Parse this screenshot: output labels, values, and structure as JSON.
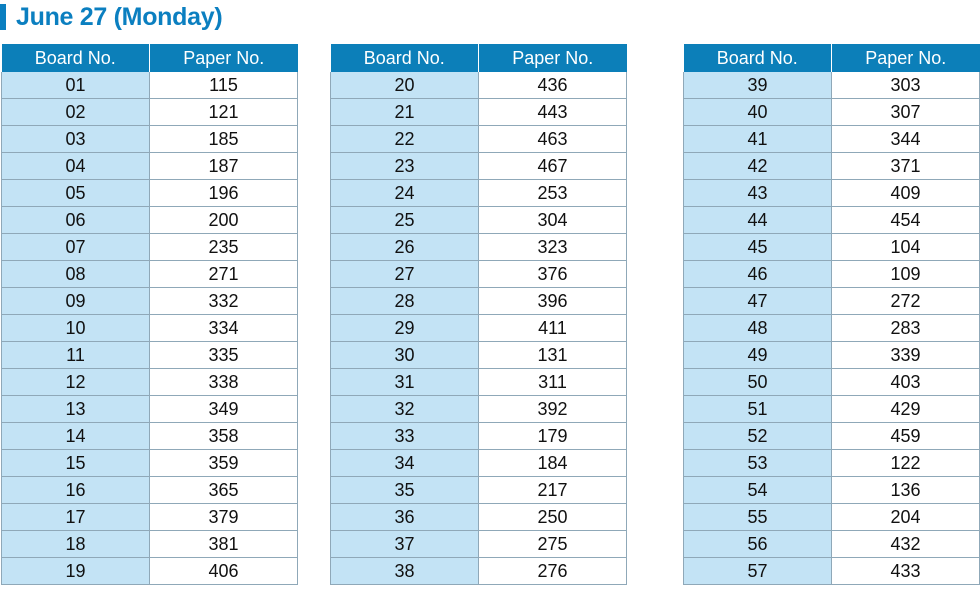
{
  "title": "June 27 (Monday)",
  "headers": {
    "board": "Board No.",
    "paper": "Paper No."
  },
  "tables": [
    {
      "rows": [
        {
          "board": "01",
          "paper": "115"
        },
        {
          "board": "02",
          "paper": "121"
        },
        {
          "board": "03",
          "paper": "185"
        },
        {
          "board": "04",
          "paper": "187"
        },
        {
          "board": "05",
          "paper": "196"
        },
        {
          "board": "06",
          "paper": "200"
        },
        {
          "board": "07",
          "paper": "235"
        },
        {
          "board": "08",
          "paper": "271"
        },
        {
          "board": "09",
          "paper": "332"
        },
        {
          "board": "10",
          "paper": "334"
        },
        {
          "board": "11",
          "paper": "335"
        },
        {
          "board": "12",
          "paper": "338"
        },
        {
          "board": "13",
          "paper": "349"
        },
        {
          "board": "14",
          "paper": "358"
        },
        {
          "board": "15",
          "paper": "359"
        },
        {
          "board": "16",
          "paper": "365"
        },
        {
          "board": "17",
          "paper": "379"
        },
        {
          "board": "18",
          "paper": "381"
        },
        {
          "board": "19",
          "paper": "406"
        }
      ]
    },
    {
      "rows": [
        {
          "board": "20",
          "paper": "436"
        },
        {
          "board": "21",
          "paper": "443"
        },
        {
          "board": "22",
          "paper": "463"
        },
        {
          "board": "23",
          "paper": "467"
        },
        {
          "board": "24",
          "paper": "253"
        },
        {
          "board": "25",
          "paper": "304"
        },
        {
          "board": "26",
          "paper": "323"
        },
        {
          "board": "27",
          "paper": "376"
        },
        {
          "board": "28",
          "paper": "396"
        },
        {
          "board": "29",
          "paper": "411"
        },
        {
          "board": "30",
          "paper": "131"
        },
        {
          "board": "31",
          "paper": "311"
        },
        {
          "board": "32",
          "paper": "392"
        },
        {
          "board": "33",
          "paper": "179"
        },
        {
          "board": "34",
          "paper": "184"
        },
        {
          "board": "35",
          "paper": "217"
        },
        {
          "board": "36",
          "paper": "250"
        },
        {
          "board": "37",
          "paper": "275"
        },
        {
          "board": "38",
          "paper": "276"
        }
      ]
    },
    {
      "rows": [
        {
          "board": "39",
          "paper": "303"
        },
        {
          "board": "40",
          "paper": "307"
        },
        {
          "board": "41",
          "paper": "344"
        },
        {
          "board": "42",
          "paper": "371"
        },
        {
          "board": "43",
          "paper": "409"
        },
        {
          "board": "44",
          "paper": "454"
        },
        {
          "board": "45",
          "paper": "104"
        },
        {
          "board": "46",
          "paper": "109"
        },
        {
          "board": "47",
          "paper": "272"
        },
        {
          "board": "48",
          "paper": "283"
        },
        {
          "board": "49",
          "paper": "339"
        },
        {
          "board": "50",
          "paper": "403"
        },
        {
          "board": "51",
          "paper": "429"
        },
        {
          "board": "52",
          "paper": "459"
        },
        {
          "board": "53",
          "paper": "122"
        },
        {
          "board": "54",
          "paper": "136"
        },
        {
          "board": "55",
          "paper": "204"
        },
        {
          "board": "56",
          "paper": "432"
        },
        {
          "board": "57",
          "paper": "433"
        }
      ]
    }
  ],
  "colors": {
    "accent": "#0b7fc0",
    "header_bg": "#0c7fb9",
    "board_cell_bg": "#c3e3f5"
  }
}
